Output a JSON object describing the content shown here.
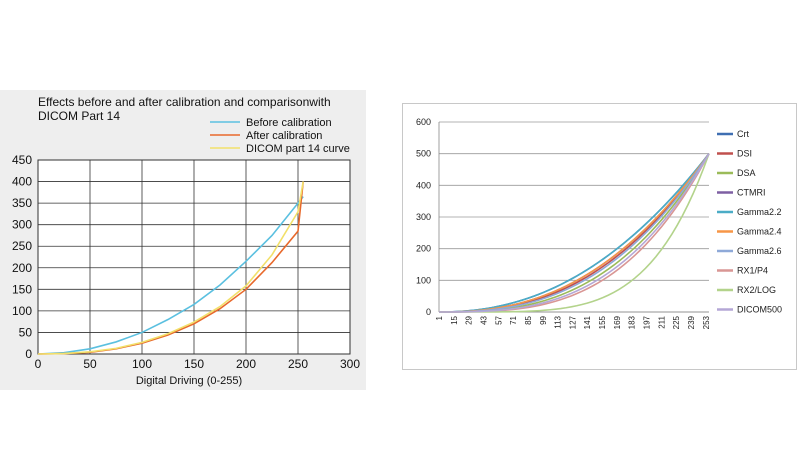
{
  "chart_data": [
    {
      "type": "line",
      "title": "Effects before and after calibration and comparisonwith DICOM Part 14",
      "xlabel": "Digital Driving (0-255)",
      "ylabel": "",
      "xlim": [
        0,
        300
      ],
      "ylim": [
        0,
        450
      ],
      "xticks": [
        0,
        50,
        100,
        150,
        200,
        250,
        300
      ],
      "yticks": [
        0,
        50,
        100,
        150,
        200,
        250,
        300,
        350,
        400,
        450
      ],
      "grid": true,
      "legend_position": "top-right",
      "series": [
        {
          "name": "Before calibration",
          "color": "#5bc0e0",
          "x": [
            0,
            25,
            50,
            75,
            100,
            125,
            150,
            175,
            200,
            225,
            250,
            255
          ],
          "y": [
            0,
            3,
            12,
            28,
            50,
            80,
            115,
            160,
            215,
            275,
            350,
            365
          ]
        },
        {
          "name": "After calibration",
          "color": "#e8692c",
          "x": [
            0,
            25,
            50,
            75,
            100,
            125,
            150,
            175,
            200,
            225,
            250,
            255
          ],
          "y": [
            0,
            1,
            4,
            12,
            25,
            44,
            70,
            105,
            150,
            212,
            285,
            400
          ]
        },
        {
          "name": "DICOM part 14 curve",
          "color": "#f2e06a",
          "x": [
            0,
            25,
            50,
            75,
            100,
            125,
            150,
            175,
            200,
            225,
            250,
            255
          ],
          "y": [
            0,
            1,
            5,
            13,
            27,
            47,
            74,
            110,
            158,
            230,
            330,
            400
          ]
        }
      ]
    },
    {
      "type": "line",
      "title": "",
      "xlabel": "",
      "ylabel": "",
      "ylim": [
        0,
        600
      ],
      "yticks": [
        0,
        100,
        200,
        300,
        400,
        500,
        600
      ],
      "x_range": [
        1,
        256
      ],
      "xticks": [
        1,
        15,
        29,
        43,
        57,
        71,
        85,
        99,
        113,
        127,
        141,
        155,
        169,
        183,
        197,
        211,
        225,
        239,
        253
      ],
      "grid": true,
      "legend_position": "right",
      "series": [
        {
          "name": "Crt",
          "color": "#3f6fb2",
          "gamma": 2.2
        },
        {
          "name": "DSI",
          "color": "#c0504d",
          "gamma": 2.5
        },
        {
          "name": "DSA",
          "color": "#9bbb59",
          "gamma": 2.8
        },
        {
          "name": "CTMRI",
          "color": "#7e5fa3",
          "gamma": 2.4
        },
        {
          "name": "Gamma2.2",
          "color": "#4bacc6",
          "gamma": 2.2
        },
        {
          "name": "Gamma2.4",
          "color": "#f79646",
          "gamma": 2.4
        },
        {
          "name": "Gamma2.6",
          "color": "#8ea9d8",
          "gamma": 2.6
        },
        {
          "name": "RX1/P4",
          "color": "#d99694",
          "gamma": 3.2
        },
        {
          "name": "RX2/LOG",
          "color": "#b3d38b",
          "gamma": 4.8
        },
        {
          "name": "DICOM500",
          "color": "#b4a7d6",
          "gamma": 3.0
        }
      ],
      "end_value": 500
    }
  ]
}
